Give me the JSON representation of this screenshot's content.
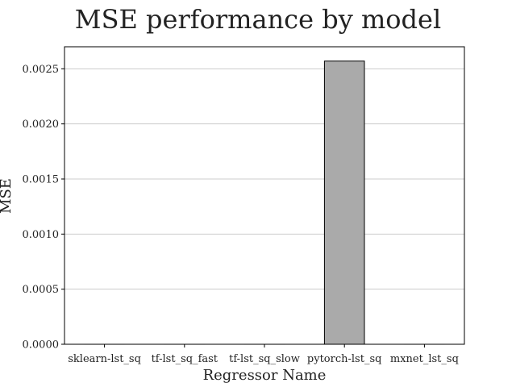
{
  "chart_data": {
    "type": "bar",
    "title": "MSE performance by model",
    "xlabel": "Regressor Name",
    "ylabel": "MSE",
    "categories": [
      "sklearn-lst_sq",
      "tf-lst_sq_fast",
      "tf-lst_sq_slow",
      "pytorch-lst_sq",
      "mxnet_lst_sq"
    ],
    "values": [
      0.0,
      0.0,
      0.0,
      0.00257,
      0.0
    ],
    "ylim": [
      0,
      0.0027
    ],
    "yticks": [
      0.0,
      0.0005,
      0.001,
      0.0015,
      0.002,
      0.0025
    ],
    "ytick_labels": [
      "0.0000",
      "0.0005",
      "0.0010",
      "0.0015",
      "0.0020",
      "0.0025"
    ],
    "grid": "y",
    "legend": "none",
    "colors": {
      "bar_fill": "#aaaaaa",
      "bar_edge": "#000000",
      "grid": "#cccccc",
      "axes": "#000000"
    }
  }
}
